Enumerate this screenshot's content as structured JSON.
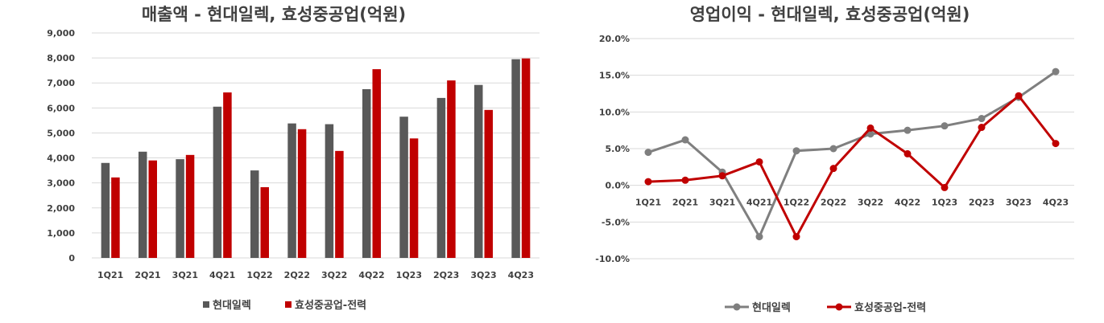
{
  "chart_data": [
    {
      "type": "bar",
      "title": "매출액 - 현대일렉, 효성중공업(억원)",
      "categories": [
        "1Q21",
        "2Q21",
        "3Q21",
        "4Q21",
        "1Q22",
        "2Q22",
        "3Q22",
        "4Q22",
        "1Q23",
        "2Q23",
        "3Q23",
        "4Q23"
      ],
      "series": [
        {
          "name": "현대일렉",
          "color": "#595959",
          "values": [
            3800,
            4250,
            3950,
            6050,
            3500,
            5380,
            5350,
            6750,
            5650,
            6400,
            6920,
            7950
          ]
        },
        {
          "name": "효성중공업-전력",
          "color": "#c00000",
          "values": [
            3220,
            3900,
            4120,
            6620,
            2830,
            5150,
            4280,
            7550,
            4780,
            7100,
            5920,
            7980
          ]
        }
      ],
      "ylim": [
        0,
        9000
      ],
      "yticks": [
        0,
        1000,
        2000,
        3000,
        4000,
        5000,
        6000,
        7000,
        8000,
        9000
      ],
      "ytick_labels": [
        "0",
        "1,000",
        "2,000",
        "3,000",
        "4,000",
        "5,000",
        "6,000",
        "7,000",
        "8,000",
        "9,000"
      ],
      "grid": true,
      "legend": "bottom"
    },
    {
      "type": "line",
      "title": "영업이익 - 현대일렉, 효성중공업(억원)",
      "categories": [
        "1Q21",
        "2Q21",
        "3Q21",
        "4Q21",
        "1Q22",
        "2Q22",
        "3Q22",
        "4Q22",
        "1Q23",
        "2Q23",
        "3Q23",
        "4Q23"
      ],
      "series": [
        {
          "name": "현대일렉",
          "color": "#7f7f7f",
          "values": [
            4.5,
            6.2,
            1.8,
            -7.0,
            4.7,
            5.0,
            7.0,
            7.5,
            8.1,
            9.1,
            12.0,
            15.5
          ]
        },
        {
          "name": "효성중공업-전력",
          "color": "#c00000",
          "values": [
            0.5,
            0.7,
            1.3,
            3.2,
            -7.0,
            2.3,
            7.8,
            4.3,
            -0.3,
            7.9,
            12.2,
            5.7
          ]
        }
      ],
      "ylim": [
        -10,
        20
      ],
      "yticks": [
        -10,
        -5,
        0,
        5,
        10,
        15,
        20
      ],
      "ytick_labels": [
        "-10.0%",
        "-5.0%",
        "0.0%",
        "5.0%",
        "10.0%",
        "15.0%",
        "20.0%"
      ],
      "grid": true,
      "legend": "bottom"
    }
  ]
}
